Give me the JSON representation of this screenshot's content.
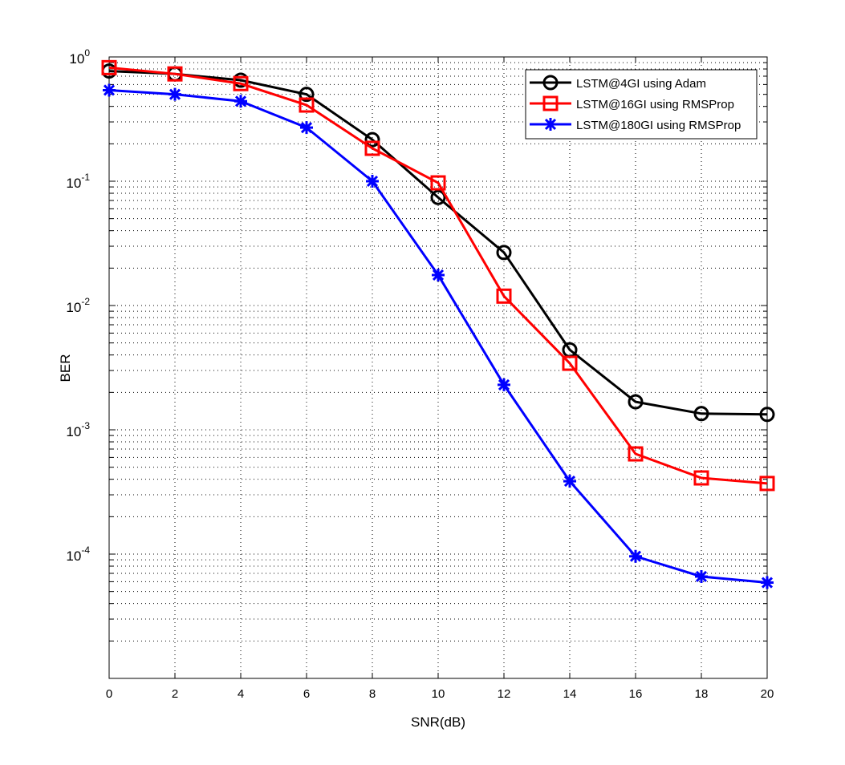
{
  "chart_data": {
    "type": "line",
    "title": "",
    "xlabel": "SNR(dB)",
    "ylabel": "BER",
    "xlim": [
      0,
      20
    ],
    "ylim": [
      1e-05,
      1
    ],
    "yscale": "log",
    "grid": true,
    "legend_position": "top-right",
    "x": [
      0,
      2,
      4,
      6,
      8,
      10,
      12,
      14,
      16,
      18,
      20
    ],
    "x_tick_labels": [
      "0",
      "2",
      "4",
      "6",
      "8",
      "10",
      "12",
      "14",
      "16",
      "18",
      "20"
    ],
    "y_tick_labels": [
      {
        "base": "10",
        "exp": "0",
        "value": 1
      },
      {
        "base": "10",
        "exp": "-1",
        "value": 0.1
      },
      {
        "base": "10",
        "exp": "-2",
        "value": 0.01
      },
      {
        "base": "10",
        "exp": "-3",
        "value": 0.001
      },
      {
        "base": "10",
        "exp": "-4",
        "value": 0.0001
      }
    ],
    "series": [
      {
        "name": "LSTM@4GI using Adam",
        "color": "#000000",
        "marker": "circle",
        "values": [
          0.77,
          0.73,
          0.65,
          0.5,
          0.216,
          0.074,
          0.0267,
          0.0044,
          0.00168,
          0.00135,
          0.00133
        ]
      },
      {
        "name": "LSTM@16GI using RMSProp",
        "color": "#ff0000",
        "marker": "square",
        "values": [
          0.82,
          0.73,
          0.61,
          0.41,
          0.184,
          0.097,
          0.0119,
          0.00343,
          0.00064,
          0.00041,
          0.00037
        ]
      },
      {
        "name": "LSTM@180GI using RMSProp",
        "color": "#0000ff",
        "marker": "asterisk",
        "values": [
          0.54,
          0.5,
          0.44,
          0.27,
          0.1,
          0.0176,
          0.0023,
          0.000386,
          9.6e-05,
          6.6e-05,
          5.9e-05
        ]
      }
    ]
  }
}
